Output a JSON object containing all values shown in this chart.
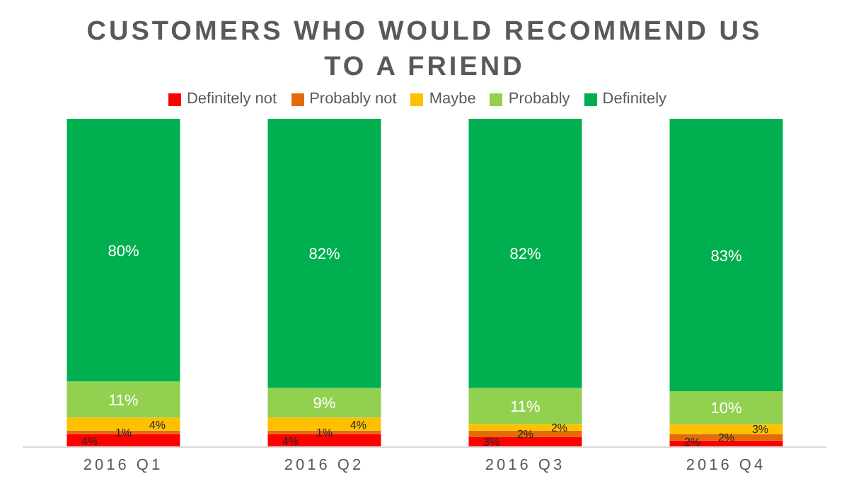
{
  "chart_data": {
    "type": "bar",
    "title": "CUSTOMERS WHO WOULD RECOMMEND US TO A FRIEND",
    "categories": [
      "2016 Q1",
      "2016 Q2",
      "2016 Q3",
      "2016 Q4"
    ],
    "stacked": true,
    "ylim": [
      0,
      100
    ],
    "tick_labels": "x",
    "legend": "top",
    "series": [
      {
        "name": "Definitely not",
        "color": "#ff0000",
        "values": [
          4,
          4,
          3,
          2
        ],
        "value_labels": [
          "4%",
          "4%",
          "3%",
          "2%"
        ]
      },
      {
        "name": "Probably not",
        "color": "#e36c09",
        "values": [
          1,
          1,
          2,
          2
        ],
        "value_labels": [
          "1%",
          "1%",
          "2%",
          "2%"
        ]
      },
      {
        "name": "Maybe",
        "color": "#ffc000",
        "values": [
          4,
          4,
          2,
          3
        ],
        "value_labels": [
          "4%",
          "4%",
          "2%",
          "3%"
        ]
      },
      {
        "name": "Probably",
        "color": "#92d050",
        "values": [
          11,
          9,
          11,
          10
        ],
        "value_labels": [
          "11%",
          "9%",
          "11%",
          "10%"
        ]
      },
      {
        "name": "Definitely",
        "color": "#00b050",
        "values": [
          80,
          82,
          82,
          83
        ],
        "value_labels": [
          "80%",
          "82%",
          "82%",
          "83%"
        ]
      }
    ]
  }
}
